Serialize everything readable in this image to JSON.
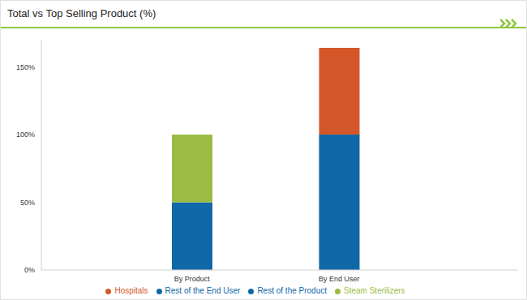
{
  "chart_data": {
    "type": "bar",
    "title": "Total vs Top Selling Product (%)",
    "categories": [
      "By Product",
      "By End User"
    ],
    "stacked": true,
    "grid": false,
    "legend": "bottom",
    "ylim": [
      0,
      170
    ],
    "yticks": [
      {
        "value": 0,
        "label": "0%"
      },
      {
        "value": 50,
        "label": "50%"
      },
      {
        "value": 100,
        "label": "100%"
      },
      {
        "value": 150,
        "label": "150%"
      }
    ],
    "series": [
      {
        "name": "Rest of the Product",
        "color": "#1068a8",
        "values": [
          50,
          null
        ]
      },
      {
        "name": "Steam Sterilizers",
        "color": "#9bbb45",
        "values": [
          50,
          null
        ]
      },
      {
        "name": "Rest of the End User",
        "color": "#1068a8",
        "values": [
          null,
          100
        ]
      },
      {
        "name": "Hospitals",
        "color": "#d4572a",
        "values": [
          null,
          64
        ]
      }
    ]
  }
}
